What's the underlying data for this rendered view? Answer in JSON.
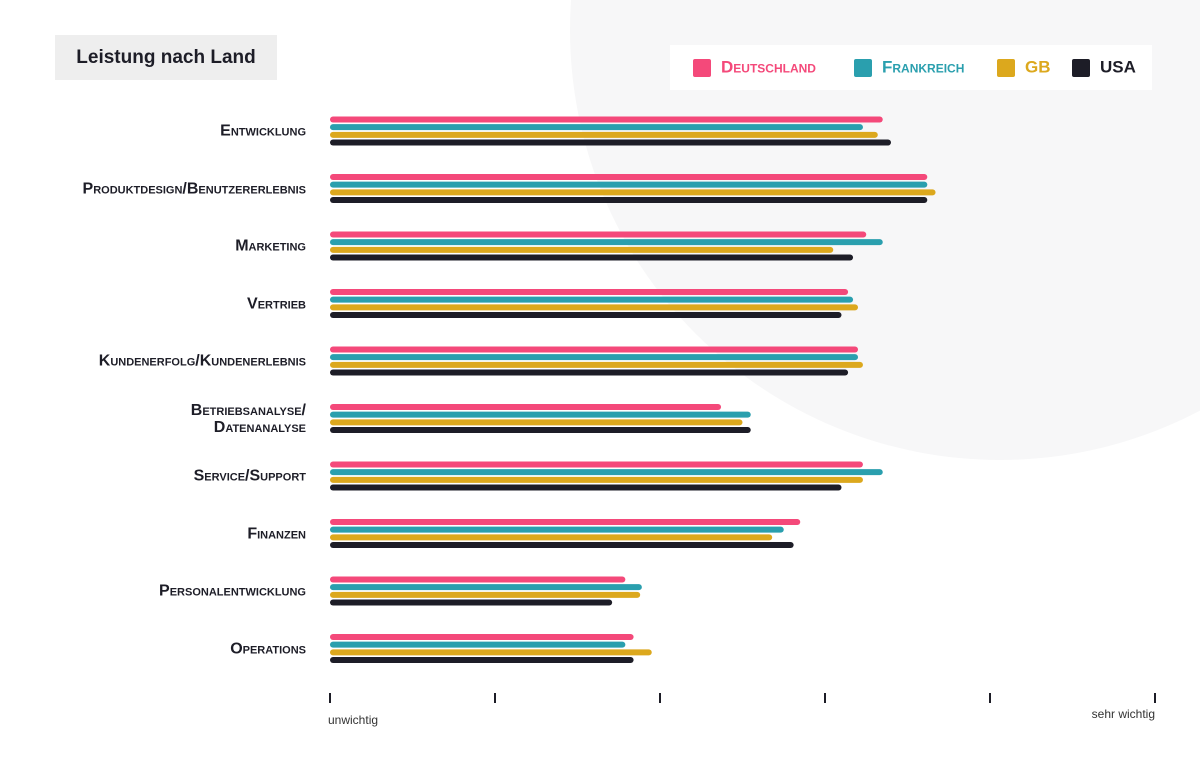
{
  "chart_data": {
    "type": "bar",
    "orientation": "horizontal",
    "title": "Leistung nach Land",
    "categories": [
      "Entwicklung",
      "Produktdesign/Benutzererlebnis",
      "Marketing",
      "Vertrieb",
      "Kundenerfolg/Kundenerlebnis",
      "Betriebsanalyse/\nDatenanalyse",
      "Service/Support",
      "Finanzen",
      "Personalentwicklung",
      "Operations"
    ],
    "series": [
      {
        "name": "Deutschland",
        "color": "#f4497a",
        "values": [
          3.35,
          3.62,
          3.25,
          3.14,
          3.2,
          2.37,
          3.23,
          2.85,
          1.79,
          1.84
        ]
      },
      {
        "name": "Frankreich",
        "color": "#2a9fae",
        "values": [
          3.23,
          3.62,
          3.35,
          3.17,
          3.2,
          2.55,
          3.35,
          2.75,
          1.89,
          1.79
        ]
      },
      {
        "name": "GB",
        "color": "#dca81d",
        "values": [
          3.32,
          3.67,
          3.05,
          3.2,
          3.23,
          2.5,
          3.23,
          2.68,
          1.88,
          1.95
        ]
      },
      {
        "name": "USA",
        "color": "#1d1d27",
        "values": [
          3.4,
          3.62,
          3.17,
          3.1,
          3.14,
          2.55,
          3.1,
          2.81,
          1.71,
          1.84
        ]
      }
    ],
    "xlim": [
      0,
      5
    ],
    "xticks": [
      0,
      1,
      2,
      3,
      4,
      5
    ],
    "x_axis_low_label": "unwichtig",
    "x_axis_high_label": "sehr wichtig",
    "legend": "top-right",
    "grid": false
  }
}
